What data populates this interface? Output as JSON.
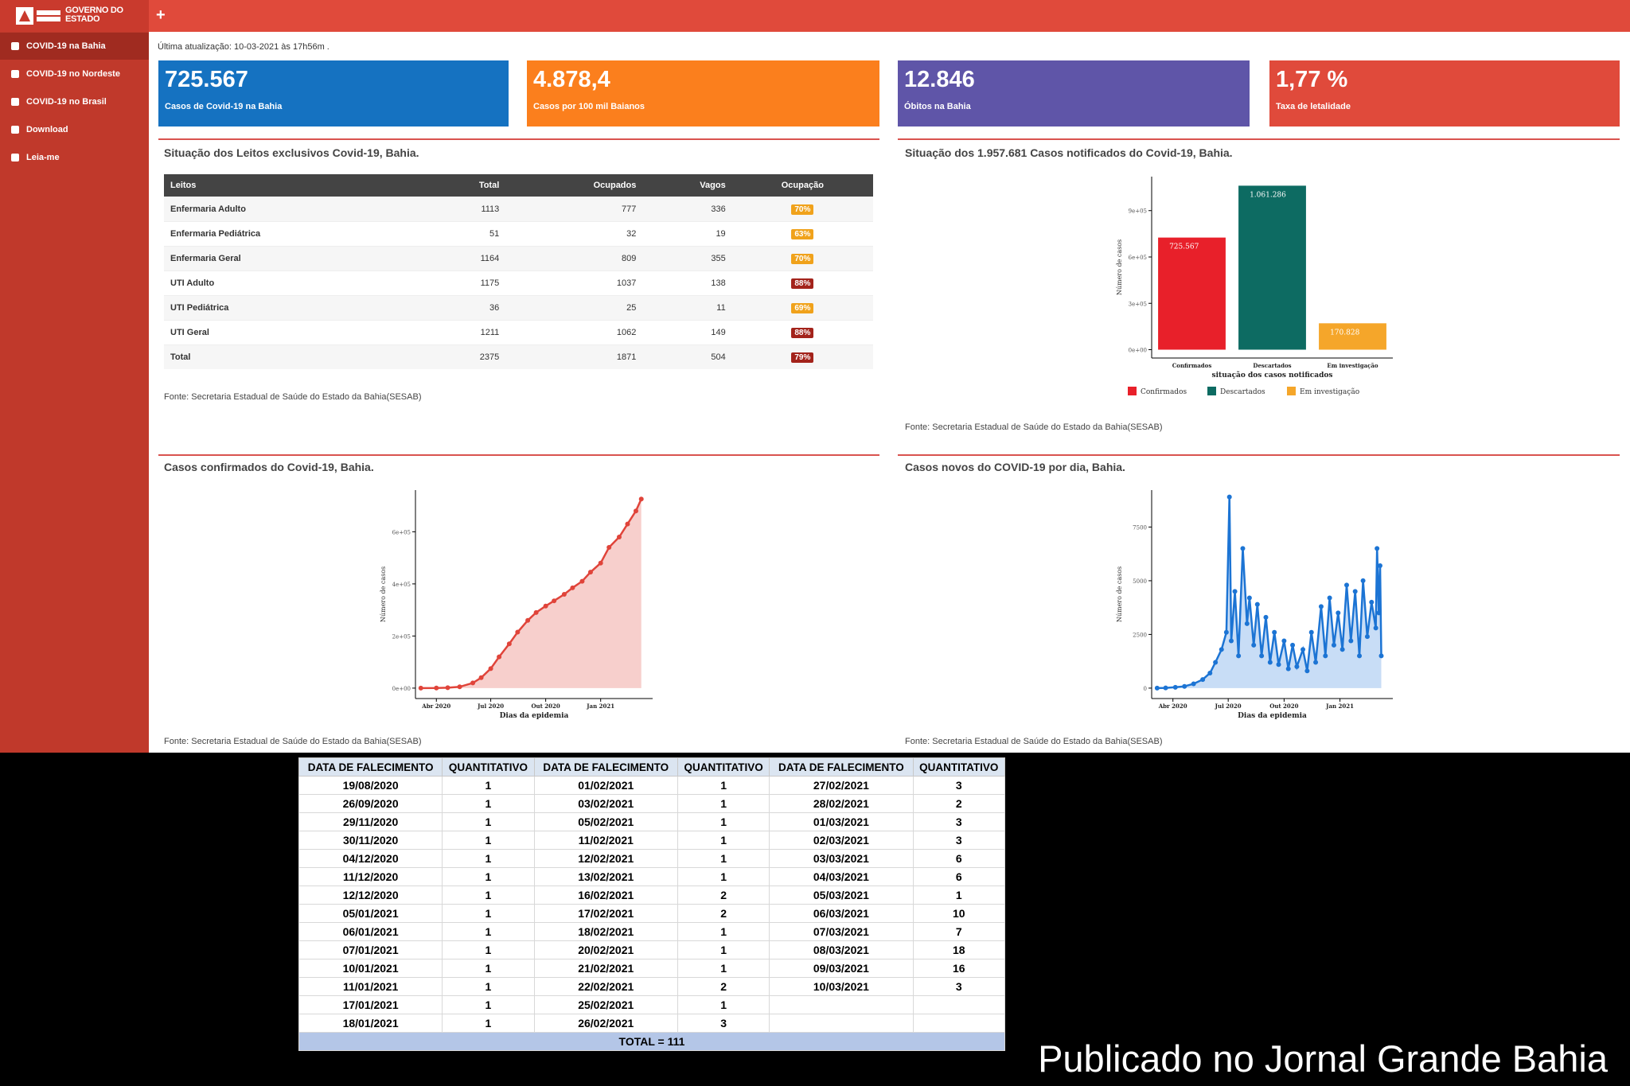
{
  "header": {
    "logo": "GOVERNO DO ESTADO",
    "new_tab": "+"
  },
  "sidebar": {
    "items": [
      "COVID-19 na Bahia",
      "COVID-19 no Nordeste",
      "COVID-19 no Brasil",
      "Download",
      "Leia-me"
    ]
  },
  "last_update": "Última atualização: 10-03-2021 às 17h56m .",
  "cards": [
    {
      "value": "725.567",
      "label": "Casos de Covid-19 na Bahia",
      "color": "#1572c1"
    },
    {
      "value": "4.878,4",
      "label": "Casos por 100 mil Baianos",
      "color": "#fb7f1d"
    },
    {
      "value": "12.846",
      "label": "Óbitos na Bahia",
      "color": "#5f55a8"
    },
    {
      "value": "1,77 %",
      "label": "Taxa de letalidade",
      "color": "#e04a3b"
    }
  ],
  "beds": {
    "title": "Situação dos Leitos exclusivos Covid-19, Bahia.",
    "headers": [
      "Leitos",
      "Total",
      "Ocupados",
      "Vagos",
      "Ocupação"
    ],
    "rows": [
      [
        "Enfermaria Adulto",
        1113,
        777,
        336,
        "70%"
      ],
      [
        "Enfermaria Pediátrica",
        51,
        32,
        19,
        "63%"
      ],
      [
        "Enfermaria Geral",
        1164,
        809,
        355,
        "70%"
      ],
      [
        "UTI Adulto",
        1175,
        1037,
        138,
        "88%"
      ],
      [
        "UTI Pediátrica",
        36,
        25,
        11,
        "69%"
      ],
      [
        "UTI Geral",
        1211,
        1062,
        149,
        "88%"
      ],
      [
        "Total",
        2375,
        1871,
        504,
        "79%"
      ]
    ],
    "occupancy_colors": [
      "#f0a21b",
      "#f0a21b",
      "#f0a21b",
      "#a3231b",
      "#f0a21b",
      "#a3231b",
      "#a3231b"
    ],
    "source": "Fonte: Secretaria Estadual de Saúde do Estado da Bahia(SESAB)"
  },
  "case_status": {
    "type": "bar",
    "title": "Situação dos 1.957.681 Casos notificados do Covid-19, Bahia.",
    "categories": [
      "Confirmados",
      "Descartados",
      "Em investigação"
    ],
    "values": [
      725567,
      1061286,
      170828
    ],
    "value_labels": [
      "725.567",
      "1.061.286",
      "170.828"
    ],
    "colors": [
      "#e8202a",
      "#0d6b62",
      "#f5a62a"
    ],
    "ylabel": "Número de casos",
    "xlabel": "situação dos casos notificados",
    "ylim": [
      -54000,
      1120000
    ],
    "yticks": [
      {
        "value": 0,
        "label": "0e+00"
      },
      {
        "value": 300000,
        "label": "3e+05"
      },
      {
        "value": 600000,
        "label": "6e+05"
      },
      {
        "value": 900000,
        "label": "9e+05"
      }
    ],
    "source": "Fonte: Secretaria Estadual de Saúde do Estado da Bahia(SESAB)"
  },
  "confirmed": {
    "type": "area",
    "title": "Casos confirmados do Covid-19, Bahia.",
    "x": [
      "2020-03-06",
      "2020-04-01",
      "2020-04-20",
      "2020-05-10",
      "2020-06-01",
      "2020-06-15",
      "2020-07-01",
      "2020-07-15",
      "2020-08-01",
      "2020-08-15",
      "2020-09-01",
      "2020-09-15",
      "2020-10-01",
      "2020-10-15",
      "2020-11-01",
      "2020-11-15",
      "2020-12-01",
      "2020-12-15",
      "2021-01-01",
      "2021-01-15",
      "2021-02-01",
      "2021-02-15",
      "2021-03-01",
      "2021-03-10"
    ],
    "values": [
      0,
      300,
      1500,
      5000,
      20000,
      40000,
      75000,
      120000,
      170000,
      215000,
      260000,
      290000,
      315000,
      335000,
      360000,
      385000,
      410000,
      445000,
      480000,
      540000,
      580000,
      630000,
      680000,
      725567
    ],
    "line_color": "#e0443a",
    "fill_color": "#f7cfcc",
    "ylabel": "Número de casos",
    "xlabel": "Dias da epidemia",
    "xlim": [
      "2020-02-26",
      "2021-03-29"
    ],
    "xticks": [
      {
        "value": "2020-04-01",
        "label": "Abr 2020"
      },
      {
        "value": "2020-07-01",
        "label": "Jul 2020"
      },
      {
        "value": "2020-10-01",
        "label": "Out 2020"
      },
      {
        "value": "2021-01-01",
        "label": "Jan 2021"
      }
    ],
    "ylim": [
      -40000,
      760000
    ],
    "yticks": [
      {
        "value": 0,
        "label": "0e+00"
      },
      {
        "value": 200000,
        "label": "2e+05"
      },
      {
        "value": 400000,
        "label": "4e+05"
      },
      {
        "value": 600000,
        "label": "6e+05"
      }
    ],
    "source": "Fonte: Secretaria Estadual de Saúde do Estado da Bahia(SESAB)"
  },
  "daily": {
    "type": "area",
    "title": "Casos novos do COVID-19 por dia, Bahia.",
    "x": [
      "2020-03-06",
      "2020-03-20",
      "2020-04-05",
      "2020-04-20",
      "2020-05-05",
      "2020-05-20",
      "2020-06-01",
      "2020-06-10",
      "2020-06-20",
      "2020-06-28",
      "2020-07-03",
      "2020-07-06",
      "2020-07-12",
      "2020-07-18",
      "2020-07-25",
      "2020-08-01",
      "2020-08-05",
      "2020-08-12",
      "2020-08-18",
      "2020-08-25",
      "2020-09-01",
      "2020-09-08",
      "2020-09-15",
      "2020-09-22",
      "2020-10-01",
      "2020-10-08",
      "2020-10-15",
      "2020-10-22",
      "2020-11-01",
      "2020-11-08",
      "2020-11-15",
      "2020-11-22",
      "2020-12-01",
      "2020-12-08",
      "2020-12-15",
      "2020-12-22",
      "2020-12-29",
      "2021-01-05",
      "2021-01-12",
      "2021-01-19",
      "2021-01-26",
      "2021-02-02",
      "2021-02-08",
      "2021-02-15",
      "2021-02-22",
      "2021-03-01",
      "2021-03-03",
      "2021-03-06",
      "2021-03-08",
      "2021-03-10"
    ],
    "values": [
      0,
      10,
      40,
      80,
      200,
      400,
      700,
      1200,
      1800,
      2600,
      8900,
      2200,
      4500,
      1500,
      6500,
      3000,
      4200,
      2000,
      3900,
      1500,
      3300,
      1200,
      2600,
      1100,
      2200,
      900,
      2000,
      1000,
      1800,
      800,
      2600,
      1200,
      3800,
      1500,
      4200,
      2000,
      3500,
      1800,
      4800,
      2200,
      4500,
      1500,
      5000,
      2400,
      4000,
      2800,
      6500,
      3500,
      5700,
      1500
    ],
    "line_color": "#1c74d4",
    "fill_color": "#c8ddf6",
    "ylabel": "Número de casos",
    "xlabel": "Dias da epidemia",
    "xlim": [
      "2020-02-26",
      "2021-03-29"
    ],
    "xticks": [
      {
        "value": "2020-04-01",
        "label": "Abr 2020"
      },
      {
        "value": "2020-07-01",
        "label": "Jul 2020"
      },
      {
        "value": "2020-10-01",
        "label": "Out 2020"
      },
      {
        "value": "2021-01-01",
        "label": "Jan 2021"
      }
    ],
    "ylim": [
      -485,
      9220
    ],
    "yticks": [
      0,
      2500,
      5000,
      7500
    ],
    "source": "Fonte: Secretaria Estadual de Saúde do Estado da Bahia(SESAB)"
  },
  "deaths_table": {
    "headers": [
      "DATA DE FALECIMENTO",
      "QUANTITATIVO",
      "DATA DE FALECIMENTO",
      "QUANTITATIVO",
      "DATA DE FALECIMENTO",
      "QUANTITATIVO"
    ],
    "rows": [
      [
        "19/08/2020",
        1,
        "01/02/2021",
        1,
        "27/02/2021",
        3
      ],
      [
        "26/09/2020",
        1,
        "03/02/2021",
        1,
        "28/02/2021",
        2
      ],
      [
        "29/11/2020",
        1,
        "05/02/2021",
        1,
        "01/03/2021",
        3
      ],
      [
        "30/11/2020",
        1,
        "11/02/2021",
        1,
        "02/03/2021",
        3
      ],
      [
        "04/12/2020",
        1,
        "12/02/2021",
        1,
        "03/03/2021",
        6
      ],
      [
        "11/12/2020",
        1,
        "13/02/2021",
        1,
        "04/03/2021",
        6
      ],
      [
        "12/12/2020",
        1,
        "16/02/2021",
        2,
        "05/03/2021",
        1
      ],
      [
        "05/01/2021",
        1,
        "17/02/2021",
        2,
        "06/03/2021",
        10
      ],
      [
        "06/01/2021",
        1,
        "18/02/2021",
        1,
        "07/03/2021",
        7
      ],
      [
        "07/01/2021",
        1,
        "20/02/2021",
        1,
        "08/03/2021",
        18
      ],
      [
        "10/01/2021",
        1,
        "21/02/2021",
        1,
        "09/03/2021",
        16
      ],
      [
        "11/01/2021",
        1,
        "22/02/2021",
        2,
        "10/03/2021",
        3
      ],
      [
        "17/01/2021",
        1,
        "25/02/2021",
        1,
        null,
        null
      ],
      [
        "18/01/2021",
        1,
        "26/02/2021",
        3,
        null,
        null
      ]
    ],
    "total": "TOTAL = 111"
  },
  "watermark": "Publicado no Jornal Grande Bahia"
}
